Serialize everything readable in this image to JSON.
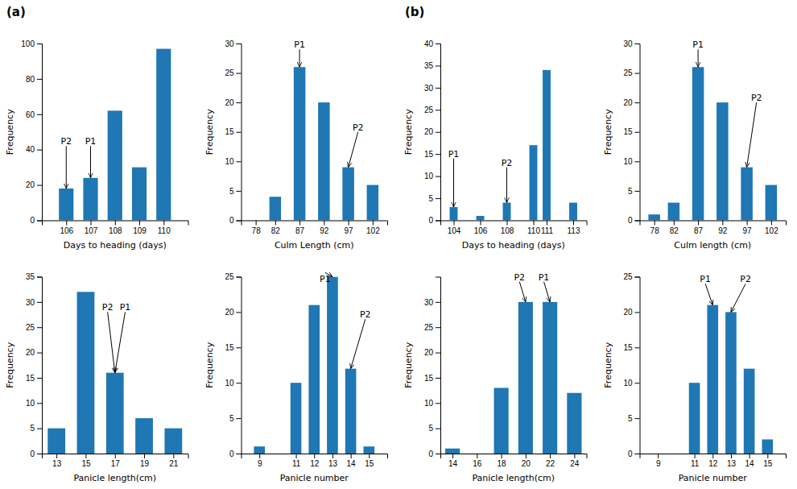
{
  "chart_data": [
    {
      "type": "bar",
      "x": [
        106,
        107,
        108,
        109,
        110
      ],
      "values": [
        18,
        24,
        62,
        30,
        97
      ],
      "xlabel": "Days to heading (days)",
      "ylabel": "Frequency",
      "xlim": [
        105,
        111
      ],
      "xticks": [
        106,
        107,
        108,
        109,
        110
      ],
      "ylim": [
        0,
        100
      ],
      "yticks": [
        0,
        20,
        40,
        60,
        80,
        100
      ],
      "annotations": [
        {
          "text": "P2",
          "x": 106,
          "y": 18,
          "text_x": 106,
          "text_y": 42
        },
        {
          "text": "P1",
          "x": 107,
          "y": 24,
          "text_x": 107,
          "text_y": 42
        }
      ]
    },
    {
      "type": "bar",
      "x": [
        78,
        82,
        87,
        92,
        97,
        102
      ],
      "values": [
        0,
        4,
        26,
        20,
        9,
        6
      ],
      "xlabel": "Culm Length (cm)",
      "ylabel": "Frequency",
      "xlim": [
        75,
        105
      ],
      "xticks": [
        78,
        82,
        87,
        92,
        97,
        102
      ],
      "ylim": [
        0,
        30
      ],
      "yticks": [
        0,
        5,
        10,
        15,
        20,
        25,
        30
      ],
      "annotations": [
        {
          "text": "P1",
          "x": 87,
          "y": 26,
          "text_x": 87,
          "text_y": 29
        },
        {
          "text": "P2",
          "x": 97,
          "y": 9,
          "text_x": 99,
          "text_y": 15
        }
      ]
    },
    {
      "type": "bar",
      "x": [
        13,
        15,
        17,
        19,
        21
      ],
      "values": [
        5,
        32,
        16,
        7,
        5
      ],
      "xlabel": "Panicle length(cm)",
      "ylabel": "Frequency",
      "xlim": [
        12,
        22
      ],
      "xticks": [
        13,
        15,
        17,
        19,
        21
      ],
      "ylim": [
        0,
        35
      ],
      "yticks": [
        0,
        5,
        10,
        15,
        20,
        25,
        30,
        35
      ],
      "annotations": [
        {
          "text": "P2",
          "x": 17,
          "y": 16,
          "text_x": 16.5,
          "text_y": 28
        },
        {
          "text": "P1",
          "x": 17,
          "y": 16,
          "text_x": 17.7,
          "text_y": 28
        }
      ]
    },
    {
      "type": "bar",
      "x": [
        9,
        11,
        12,
        13,
        14,
        15
      ],
      "values": [
        1,
        10,
        21,
        25,
        12,
        1
      ],
      "xlabel": "Panicle number",
      "ylabel": "Frequency",
      "xlim": [
        8,
        16
      ],
      "xticks": [
        9,
        11,
        12,
        13,
        14,
        15
      ],
      "ylim": [
        0,
        25
      ],
      "yticks": [
        0,
        5,
        10,
        15,
        20,
        25
      ],
      "annotations": [
        {
          "text": "P1",
          "x": 13,
          "y": 25,
          "text_x": 12.6,
          "text_y": 24
        },
        {
          "text": "P2",
          "x": 14,
          "y": 12,
          "text_x": 14.8,
          "text_y": 19
        }
      ]
    },
    {
      "type": "bar",
      "x": [
        104,
        106,
        108,
        110,
        111,
        113
      ],
      "values": [
        3,
        1,
        4,
        17,
        34,
        4
      ],
      "xlabel": "Days to heading (days)",
      "ylabel": "Frequency",
      "xlim": [
        103,
        114
      ],
      "xticks": [
        104,
        106,
        108,
        110,
        111,
        113
      ],
      "ylim": [
        0,
        40
      ],
      "yticks": [
        0,
        5,
        10,
        15,
        20,
        25,
        30,
        35,
        40
      ],
      "annotations": [
        {
          "text": "P1",
          "x": 104,
          "y": 3,
          "text_x": 104,
          "text_y": 14
        },
        {
          "text": "P2",
          "x": 108,
          "y": 4,
          "text_x": 108,
          "text_y": 12
        }
      ]
    },
    {
      "type": "bar",
      "x": [
        78,
        82,
        87,
        92,
        97,
        102
      ],
      "values": [
        1,
        3,
        26,
        20,
        9,
        6
      ],
      "xlabel": "Culm length (cm)",
      "ylabel": "Frequency",
      "xlim": [
        75,
        105
      ],
      "xticks": [
        78,
        82,
        87,
        92,
        97,
        102
      ],
      "ylim": [
        0,
        30
      ],
      "yticks": [
        0,
        5,
        10,
        15,
        20,
        25,
        30
      ],
      "annotations": [
        {
          "text": "P1",
          "x": 87,
          "y": 26,
          "text_x": 87,
          "text_y": 29
        },
        {
          "text": "P2",
          "x": 97,
          "y": 9,
          "text_x": 99,
          "text_y": 20
        }
      ]
    },
    {
      "type": "bar",
      "x": [
        14,
        16,
        18,
        20,
        22,
        24
      ],
      "values": [
        1,
        0,
        13,
        30,
        30,
        12
      ],
      "xlabel": "Panicle length(cm)",
      "ylabel": "Frequency",
      "xlim": [
        13,
        25
      ],
      "xticks": [
        14,
        16,
        18,
        20,
        22,
        24
      ],
      "ylim": [
        0,
        35
      ],
      "yticks": [
        0,
        5,
        10,
        15,
        20,
        25,
        30
      ],
      "annotations": [
        {
          "text": "P2",
          "x": 20,
          "y": 30,
          "text_x": 19.5,
          "text_y": 34
        },
        {
          "text": "P1",
          "x": 22,
          "y": 30,
          "text_x": 21.5,
          "text_y": 34
        }
      ]
    },
    {
      "type": "bar",
      "x": [
        9,
        11,
        12,
        13,
        14,
        15
      ],
      "values": [
        0,
        10,
        21,
        20,
        12,
        2
      ],
      "xlabel": "Panicle number",
      "ylabel": "Frequency",
      "xlim": [
        8,
        16
      ],
      "xticks": [
        9,
        11,
        12,
        13,
        14,
        15
      ],
      "ylim": [
        0,
        25
      ],
      "yticks": [
        0,
        5,
        10,
        15,
        20,
        25
      ],
      "annotations": [
        {
          "text": "P1",
          "x": 12,
          "y": 21,
          "text_x": 11.6,
          "text_y": 24
        },
        {
          "text": "P2",
          "x": 13,
          "y": 20,
          "text_x": 13.8,
          "text_y": 24
        }
      ]
    }
  ],
  "annotations": [
    {
      "text": "(a)"
    },
    {
      "text": "(b)"
    }
  ]
}
